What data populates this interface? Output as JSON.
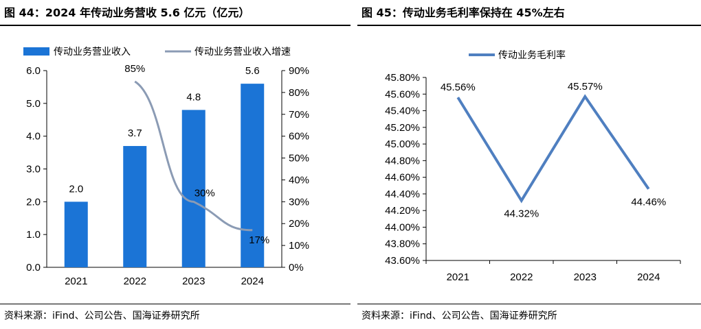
{
  "figures": [
    {
      "title": "图 44：2024 年传动业务营收 5.6 亿元（亿元）",
      "source": "资料来源：iFind、公司公告、国海证券研究所"
    },
    {
      "title": "图 45：传动业务毛利率保持在 45%左右",
      "source": "资料来源：iFind、公司公告、国海证券研究所"
    }
  ],
  "colors": {
    "bar": "#1b74d6",
    "line": "#8b9bb4",
    "margin_line": "#4f7fc0",
    "axis": "#000000"
  },
  "chart_data": [
    {
      "type": "bar",
      "categories": [
        "2021",
        "2022",
        "2023",
        "2024"
      ],
      "series": [
        {
          "name": "传动业务营业收入",
          "type": "bar",
          "axis": "left",
          "values": [
            2.0,
            3.7,
            4.8,
            5.6
          ],
          "labels": [
            "2.0",
            "3.7",
            "4.8",
            "5.6"
          ]
        },
        {
          "name": "传动业务营业收入增速",
          "type": "line",
          "axis": "right",
          "values": [
            null,
            85,
            30,
            17
          ],
          "labels": [
            "",
            "85%",
            "30%",
            "17%"
          ]
        }
      ],
      "ylim": [
        0,
        6
      ],
      "yticks": [
        "0.0",
        "1.0",
        "2.0",
        "3.0",
        "4.0",
        "5.0",
        "6.0"
      ],
      "y2lim": [
        0,
        90
      ],
      "y2ticks": [
        "0%",
        "10%",
        "20%",
        "30%",
        "40%",
        "50%",
        "60%",
        "70%",
        "80%",
        "90%"
      ],
      "legend": "top",
      "grid": false
    },
    {
      "type": "line",
      "categories": [
        "2021",
        "2022",
        "2023",
        "2024"
      ],
      "series": [
        {
          "name": "传动业务毛利率",
          "values": [
            45.56,
            44.32,
            45.57,
            44.46
          ],
          "labels": [
            "45.56%",
            "44.32%",
            "45.57%",
            "44.46%"
          ]
        }
      ],
      "ylim": [
        43.6,
        45.8
      ],
      "yticks": [
        "43.60%",
        "43.80%",
        "44.00%",
        "44.20%",
        "44.40%",
        "44.60%",
        "44.80%",
        "45.00%",
        "45.20%",
        "45.40%",
        "45.60%",
        "45.80%"
      ],
      "legend": "top",
      "grid": false
    }
  ]
}
